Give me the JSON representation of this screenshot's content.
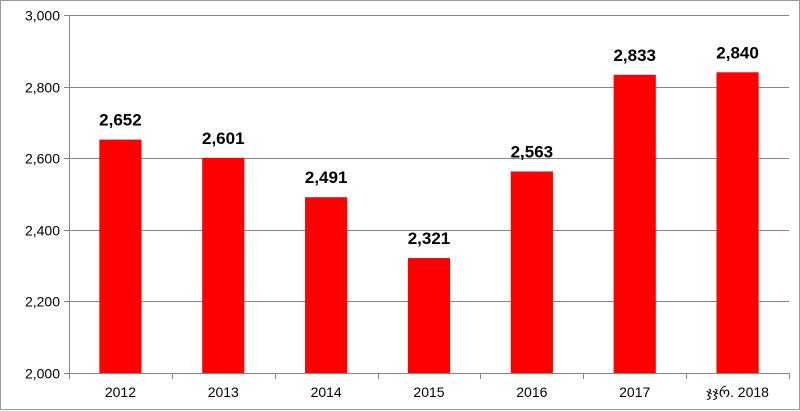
{
  "chart_data": {
    "type": "bar",
    "categories": [
      "2012",
      "2013",
      "2014",
      "2015",
      "2016",
      "2017",
      "ჯჯრ. 2018"
    ],
    "values": [
      2652,
      2601,
      2491,
      2321,
      2563,
      2833,
      2840
    ],
    "data_labels": [
      "2,652",
      "2,601",
      "2,491",
      "2,321",
      "2,563",
      "2,833",
      "2,840"
    ],
    "ylim": [
      2000,
      3000
    ],
    "yticks": [
      2000,
      2200,
      2400,
      2600,
      2800,
      3000
    ],
    "ytick_labels": [
      "2,000",
      "2,200",
      "2,400",
      "2,600",
      "2,800",
      "3,000"
    ],
    "title": "",
    "xlabel": "",
    "ylabel": "",
    "grid": true,
    "legend": "none",
    "colors": {
      "bar": "#ff0000",
      "grid": "#868686",
      "axis": "#868686",
      "text": "#000000"
    }
  }
}
